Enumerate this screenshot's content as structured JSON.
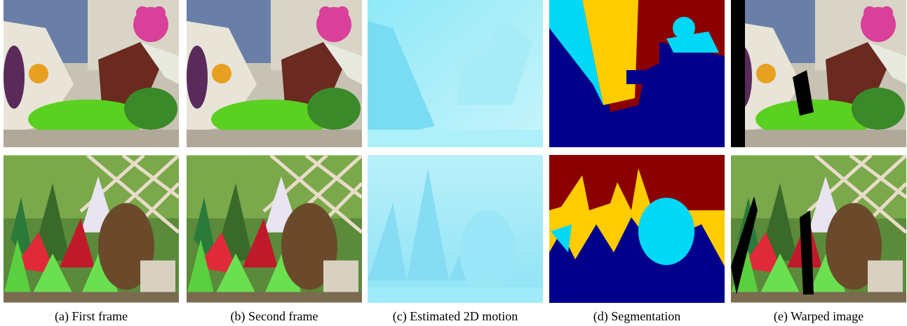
{
  "figure": {
    "captions": [
      "(a) First frame",
      "(b) Second frame",
      "(c) Estimated 2D motion",
      "(d) Segmentation",
      "(e) Warped image"
    ]
  }
}
